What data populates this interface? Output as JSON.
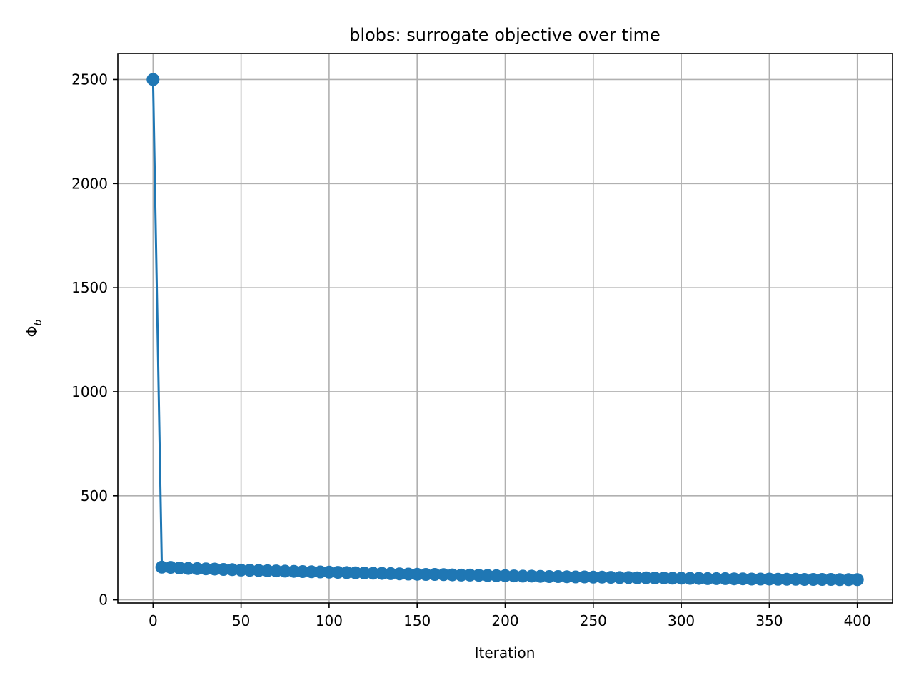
{
  "chart_data": {
    "type": "line",
    "title": "blobs: surrogate objective over time",
    "xlabel": "Iteration",
    "ylabel": "Φ",
    "ylabel_subscript": "b",
    "xlim": [
      -20,
      420
    ],
    "ylim": [
      -15,
      2625
    ],
    "xticks": [
      0,
      50,
      100,
      150,
      200,
      250,
      300,
      350,
      400
    ],
    "yticks": [
      0,
      500,
      1000,
      1500,
      2000,
      2500
    ],
    "grid": true,
    "series": [
      {
        "color": "#1f77b4",
        "marker": "circle",
        "x": [
          0,
          5,
          10,
          15,
          20,
          25,
          30,
          35,
          40,
          45,
          50,
          55,
          60,
          65,
          70,
          75,
          80,
          85,
          90,
          95,
          100,
          105,
          110,
          115,
          120,
          125,
          130,
          135,
          140,
          145,
          150,
          155,
          160,
          165,
          170,
          175,
          180,
          185,
          190,
          195,
          200,
          205,
          210,
          215,
          220,
          225,
          230,
          235,
          240,
          245,
          250,
          255,
          260,
          265,
          270,
          275,
          280,
          285,
          290,
          295,
          300,
          305,
          310,
          315,
          320,
          325,
          330,
          335,
          340,
          345,
          350,
          355,
          360,
          365,
          370,
          375,
          380,
          385,
          390,
          395,
          400
        ],
        "y": [
          2500,
          157,
          156,
          153,
          151,
          150,
          149,
          148,
          146,
          145,
          143,
          142,
          141,
          140,
          139,
          138,
          137,
          136,
          135,
          134,
          133,
          132,
          131,
          130,
          129,
          128,
          127,
          126,
          125,
          124,
          123,
          122,
          122,
          121,
          120,
          119,
          119,
          118,
          117,
          116,
          116,
          115,
          114,
          114,
          113,
          112,
          112,
          111,
          110,
          110,
          109,
          109,
          108,
          107,
          107,
          106,
          106,
          105,
          105,
          104,
          104,
          103,
          103,
          102,
          102,
          102,
          101,
          101,
          100,
          100,
          100,
          99,
          99,
          99,
          98,
          98,
          98,
          98,
          97,
          97,
          97
        ]
      }
    ]
  }
}
